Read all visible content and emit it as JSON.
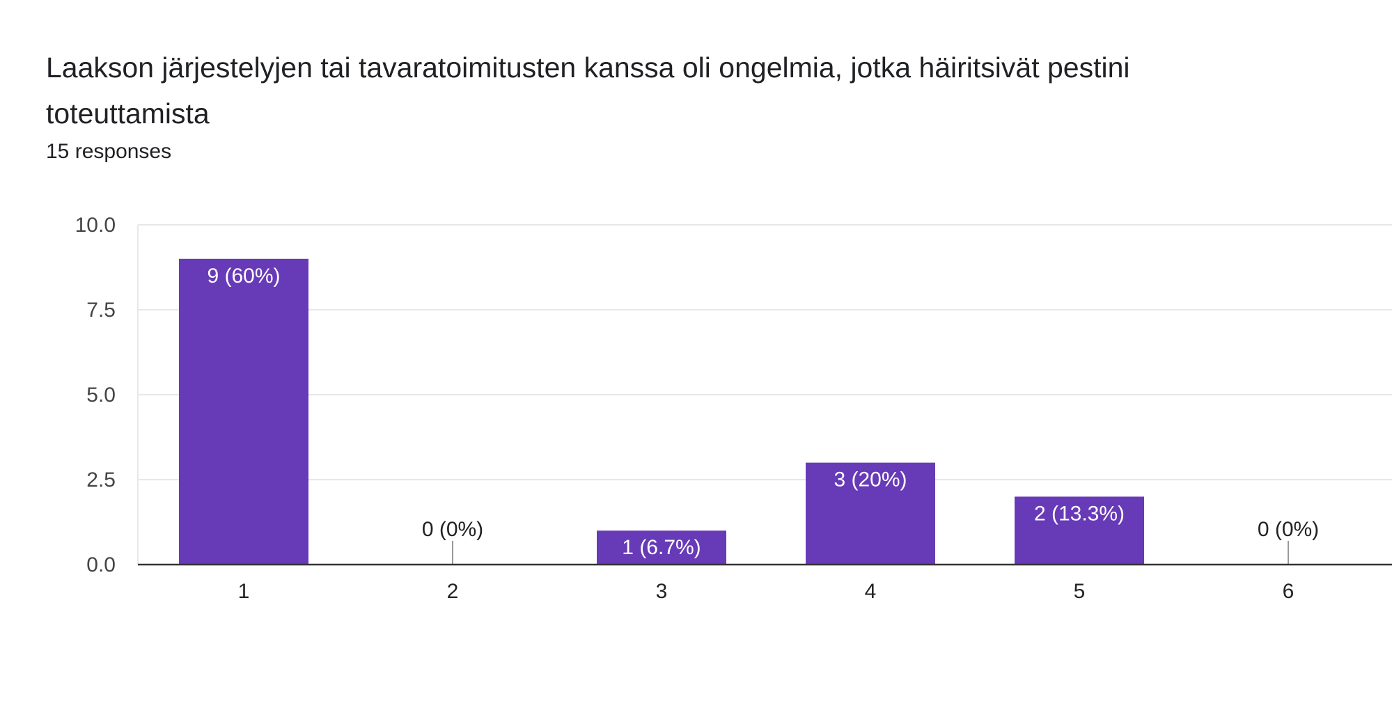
{
  "header": {
    "title": "Laakson järjestelyjen tai tavaratoimitusten kanssa oli ongelmia, jotka häiritsivät pestini toteuttamista",
    "responses": "15 responses"
  },
  "colors": {
    "bar": "#673ab7",
    "grid": "#e8e8e8",
    "axis": "#333333",
    "label_inside": "#ffffff",
    "label_outside": "#222222",
    "zero_marker": "#999999"
  },
  "chart_data": {
    "type": "bar",
    "title": "Laakson järjestelyjen tai tavaratoimitusten kanssa oli ongelmia, jotka häiritsivät pestini toteuttamista",
    "xlabel": "",
    "ylabel": "",
    "categories": [
      "1",
      "2",
      "3",
      "4",
      "5",
      "6"
    ],
    "values": [
      9,
      0,
      1,
      3,
      2,
      0
    ],
    "data_labels": [
      "9 (60%)",
      "0 (0%)",
      "1 (6.7%)",
      "3 (20%)",
      "2 (13.3%)",
      "0 (0%)"
    ],
    "ylim": [
      0,
      10
    ],
    "yticks": [
      0,
      2.5,
      5,
      7.5,
      10
    ],
    "ytick_labels": [
      "0.0",
      "2.5",
      "5.0",
      "7.5",
      "10.0"
    ],
    "grid": true,
    "legend": "none"
  }
}
